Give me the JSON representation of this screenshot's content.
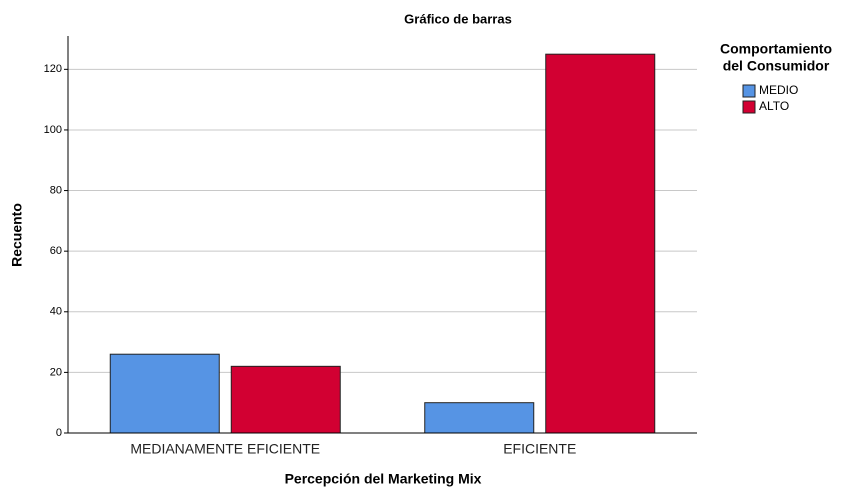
{
  "chart_data": {
    "type": "bar",
    "title": "Gráfico de barras",
    "x_label": "Percepción del Marketing Mix",
    "y_label": "Recuento",
    "categories": [
      "MEDIANAMENTE EFICIENTE",
      "EFICIENTE"
    ],
    "series": [
      {
        "name": "MEDIO",
        "color": "#5694e4",
        "values": [
          26,
          10
        ]
      },
      {
        "name": "ALTO",
        "color": "#d20032",
        "values": [
          22,
          125
        ]
      }
    ],
    "legend_title": [
      "Comportamiento",
      "del Consumidor"
    ],
    "legend": "right",
    "ylim": [
      0,
      131
    ],
    "yticks": [
      0,
      20,
      40,
      60,
      80,
      100,
      120
    ],
    "grid": true
  }
}
